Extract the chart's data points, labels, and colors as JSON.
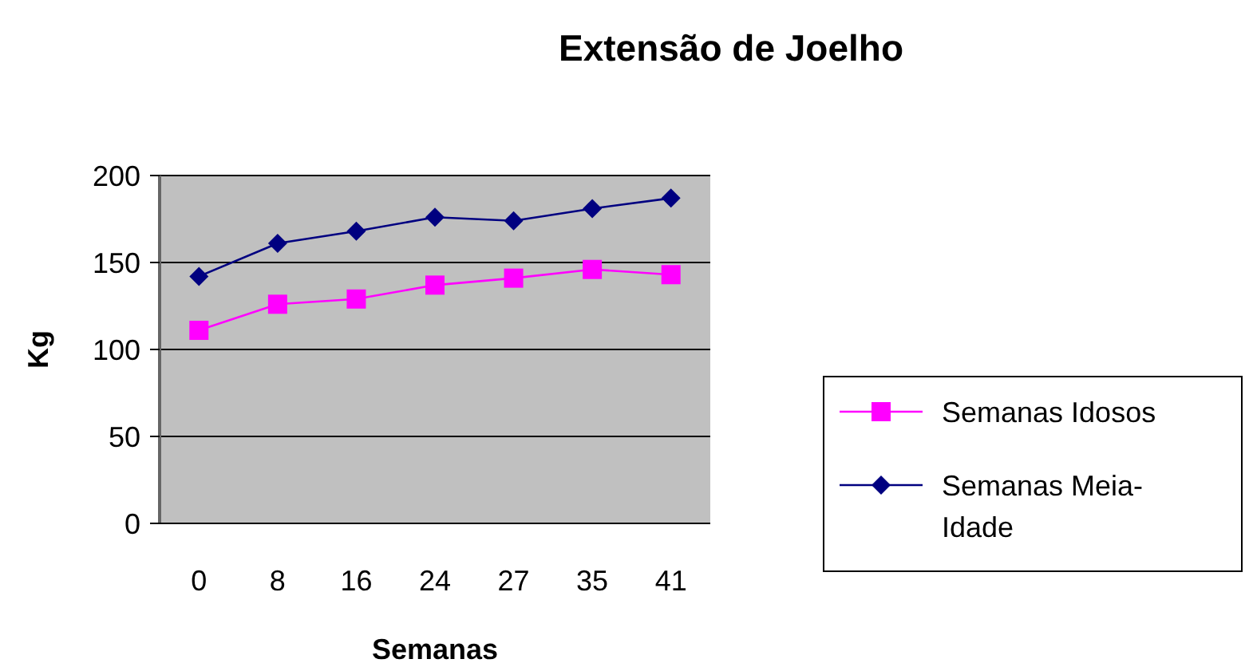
{
  "chart_data": {
    "type": "line",
    "title": "Extensão de Joelho",
    "xlabel": "Semanas",
    "ylabel": "Kg",
    "categories": [
      "0",
      "8",
      "16",
      "24",
      "27",
      "35",
      "41"
    ],
    "series": [
      {
        "name": "Semanas Idosos",
        "color": "#ff00ff",
        "marker": "square",
        "values": [
          111,
          126,
          129,
          137,
          141,
          146,
          143
        ]
      },
      {
        "name": "Semanas Meia-Idade",
        "color": "#000080",
        "marker": "diamond",
        "values": [
          142,
          161,
          168,
          176,
          174,
          181,
          187
        ]
      }
    ],
    "ylim": [
      0,
      200
    ],
    "yticks": [
      0,
      50,
      100,
      150,
      200
    ],
    "grid": "y",
    "legend": "right"
  }
}
